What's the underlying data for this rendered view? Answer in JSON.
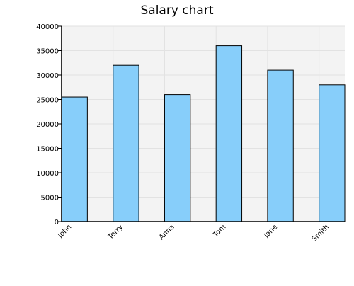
{
  "chart_data": {
    "type": "bar",
    "title": "Salary chart",
    "categories": [
      "John",
      "Terry",
      "Anna",
      "Tom",
      "Jane",
      "Smith"
    ],
    "values": [
      25500,
      32000,
      26000,
      36000,
      31000,
      28000
    ],
    "ylim": [
      0,
      40000
    ],
    "yticks": [
      "0",
      "5000",
      "10000",
      "15000",
      "20000",
      "25000",
      "30000",
      "35000",
      "40000"
    ],
    "grid": true,
    "legend": "none",
    "colors": {
      "bar_fill": "#87CEFA",
      "bar_stroke": "#000000",
      "plot_background": "#F3F3F3",
      "grid": "#E2E2E2",
      "axis": "#000000"
    }
  }
}
